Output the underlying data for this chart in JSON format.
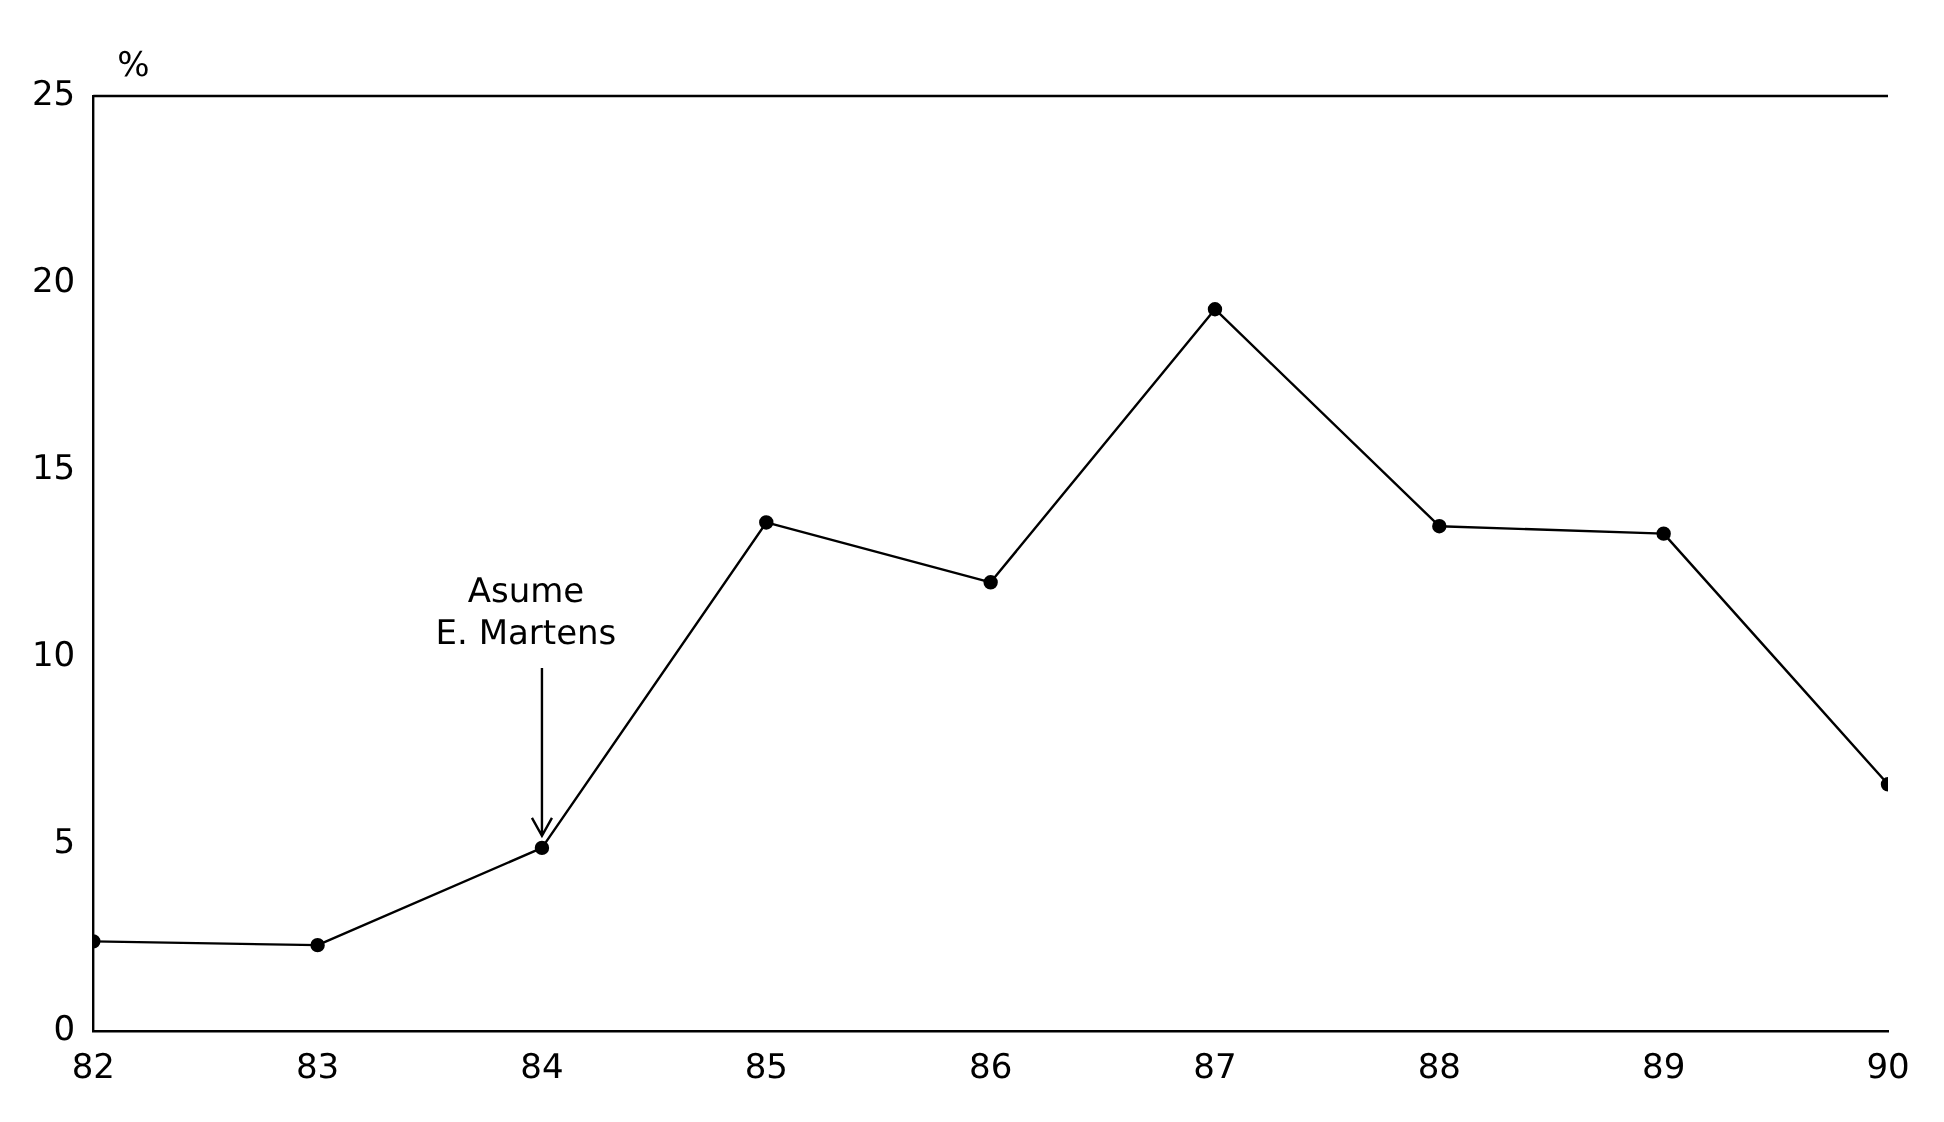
{
  "chart_data": {
    "type": "line",
    "ylabel": "%",
    "x": [
      82,
      83,
      84,
      85,
      86,
      87,
      88,
      89,
      90
    ],
    "series": [
      {
        "color": "#000000",
        "values": [
          2.4,
          2.3,
          4.9,
          13.6,
          12.0,
          19.3,
          13.5,
          13.3,
          6.6
        ]
      }
    ],
    "xlim": [
      82,
      90
    ],
    "xticks": [
      82,
      83,
      84,
      85,
      86,
      87,
      88,
      89,
      90
    ],
    "ylim": [
      0,
      25
    ],
    "yticks": [
      0,
      5,
      10,
      15,
      20,
      25
    ],
    "grid": false,
    "legend": false,
    "marker": "circle",
    "line_style": "solid",
    "annotations": [
      {
        "text": "Asume\nE. Martens",
        "x": 84,
        "y": 4.9
      }
    ]
  }
}
